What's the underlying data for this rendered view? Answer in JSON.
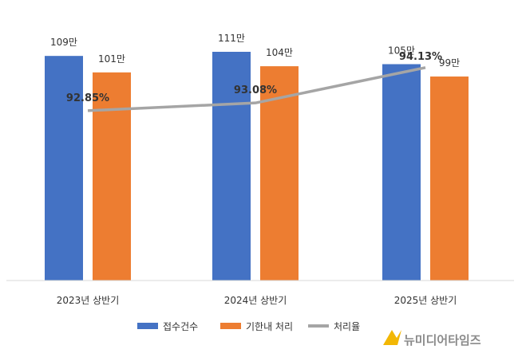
{
  "chart_data": {
    "type": "bar",
    "categories": [
      "2023년 상반기",
      "2024년 상반기",
      "2025년 상반기"
    ],
    "series": [
      {
        "name": "접수건수",
        "type": "bar",
        "values": [
          109,
          111,
          105
        ],
        "labels": [
          "109만",
          "111만",
          "105만"
        ],
        "color": "#4472C4"
      },
      {
        "name": "기한내 처리",
        "type": "bar",
        "values": [
          101,
          104,
          99
        ],
        "labels": [
          "101만",
          "104만",
          "99만"
        ],
        "color": "#ED7D31"
      },
      {
        "name": "처리율",
        "type": "line",
        "values": [
          92.85,
          93.08,
          94.13
        ],
        "labels": [
          "92.85%",
          "93.08%",
          "94.13%"
        ],
        "color": "#A5A5A5"
      }
    ],
    "bar_axis_range": [
      0,
      111
    ],
    "line_axis_range": [
      87.8,
      94.6
    ],
    "grid": false,
    "legend": "bottom"
  },
  "watermark": {
    "text": "뉴미디어타임즈",
    "color": "#F2B705"
  }
}
